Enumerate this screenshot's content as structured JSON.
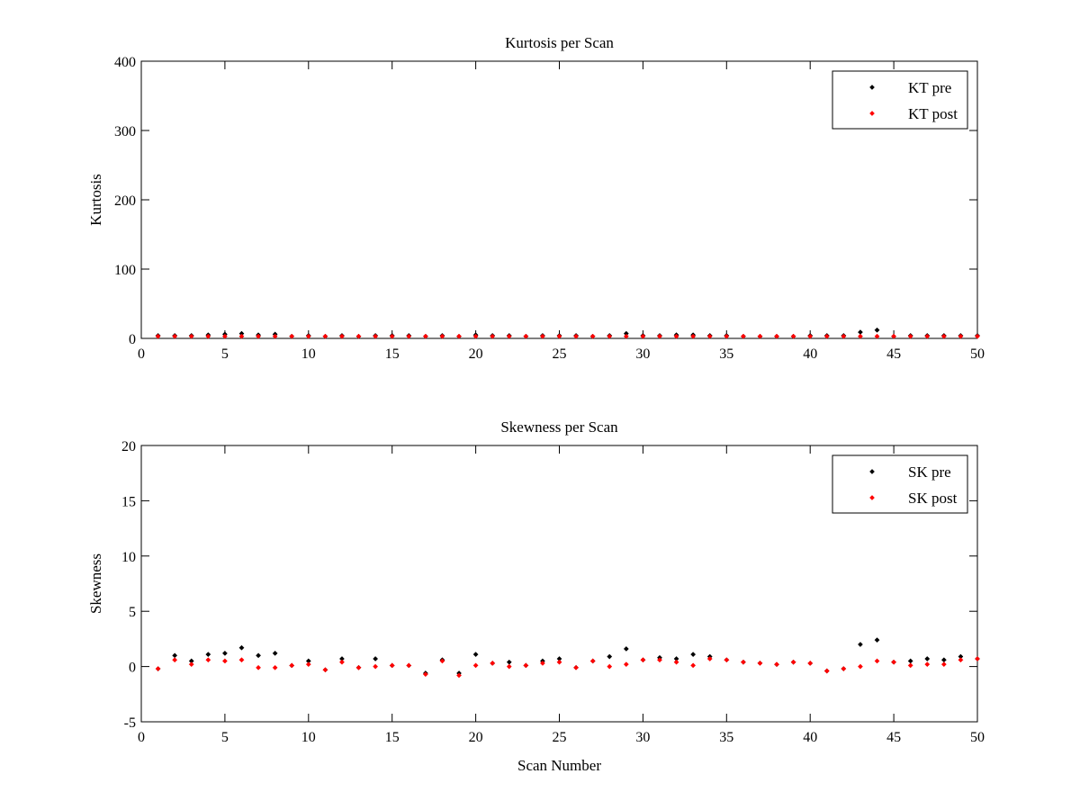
{
  "chart_data": [
    {
      "type": "scatter",
      "title": "Kurtosis per Scan",
      "xlabel": "",
      "ylabel": "Kurtosis",
      "xlim": [
        0,
        50
      ],
      "ylim": [
        0,
        400
      ],
      "xticks": [
        0,
        5,
        10,
        15,
        20,
        25,
        30,
        35,
        40,
        45,
        50
      ],
      "yticks": [
        0,
        100,
        200,
        300,
        400
      ],
      "grid": false,
      "legend_position": "top-right",
      "series": [
        {
          "name": "KT pre",
          "color": "#000000",
          "x": [
            1,
            2,
            3,
            4,
            5,
            6,
            7,
            8,
            9,
            10,
            11,
            12,
            13,
            14,
            15,
            16,
            17,
            18,
            19,
            20,
            21,
            22,
            23,
            24,
            25,
            26,
            27,
            28,
            29,
            30,
            31,
            32,
            33,
            34,
            35,
            36,
            37,
            38,
            39,
            40,
            41,
            42,
            43,
            44,
            45,
            46,
            47,
            48,
            49,
            50
          ],
          "y": [
            4,
            4,
            4,
            5,
            6,
            7,
            5,
            6,
            3,
            4,
            3,
            4,
            3,
            4,
            4,
            4,
            3,
            4,
            3,
            5,
            4,
            4,
            3,
            4,
            4,
            4,
            3,
            4,
            7,
            4,
            4,
            5,
            5,
            4,
            4,
            3,
            3,
            3,
            3,
            4,
            4,
            4,
            9,
            12,
            3,
            4,
            4,
            4,
            4,
            4
          ]
        },
        {
          "name": "KT post",
          "color": "#ff0000",
          "x": [
            1,
            2,
            3,
            4,
            5,
            6,
            7,
            8,
            9,
            10,
            11,
            12,
            13,
            14,
            15,
            16,
            17,
            18,
            19,
            20,
            21,
            22,
            23,
            24,
            25,
            26,
            27,
            28,
            29,
            30,
            31,
            32,
            33,
            34,
            35,
            36,
            37,
            38,
            39,
            40,
            41,
            42,
            43,
            44,
            45,
            46,
            47,
            48,
            49,
            50
          ],
          "y": [
            3,
            3,
            3,
            3,
            3,
            3,
            3,
            3,
            3,
            3,
            3,
            3,
            3,
            3,
            3,
            3,
            3,
            3,
            3,
            3,
            3,
            3,
            3,
            3,
            3,
            3,
            3,
            3,
            3,
            3,
            3,
            3,
            3,
            3,
            3,
            3,
            3,
            3,
            3,
            3,
            3,
            3,
            3,
            3,
            3,
            3,
            3,
            3,
            3,
            3
          ]
        }
      ]
    },
    {
      "type": "scatter",
      "title": "Skewness per Scan",
      "xlabel": "Scan Number",
      "ylabel": "Skewness",
      "xlim": [
        0,
        50
      ],
      "ylim": [
        -5,
        20
      ],
      "xticks": [
        0,
        5,
        10,
        15,
        20,
        25,
        30,
        35,
        40,
        45,
        50
      ],
      "yticks": [
        -5,
        0,
        5,
        10,
        15,
        20
      ],
      "grid": false,
      "legend_position": "top-right",
      "series": [
        {
          "name": "SK pre",
          "color": "#000000",
          "x": [
            1,
            2,
            3,
            4,
            5,
            6,
            7,
            8,
            9,
            10,
            11,
            12,
            13,
            14,
            15,
            16,
            17,
            18,
            19,
            20,
            21,
            22,
            23,
            24,
            25,
            26,
            27,
            28,
            29,
            30,
            31,
            32,
            33,
            34,
            35,
            36,
            37,
            38,
            39,
            40,
            41,
            42,
            43,
            44,
            45,
            46,
            47,
            48,
            49,
            50
          ],
          "y": [
            -0.2,
            1.0,
            0.5,
            1.1,
            1.2,
            1.7,
            1.0,
            1.2,
            0.1,
            0.5,
            -0.3,
            0.7,
            -0.1,
            0.7,
            0.1,
            0.1,
            -0.6,
            0.6,
            -0.6,
            1.1,
            0.3,
            0.4,
            0.1,
            0.5,
            0.7,
            -0.1,
            0.5,
            0.9,
            1.6,
            0.6,
            0.8,
            0.7,
            1.1,
            0.9,
            0.6,
            0.4,
            0.3,
            0.2,
            0.4,
            0.3,
            -0.4,
            -0.2,
            2.0,
            2.4,
            0.4,
            0.5,
            0.7,
            0.6,
            0.9,
            0.7
          ]
        },
        {
          "name": "SK post",
          "color": "#ff0000",
          "x": [
            1,
            2,
            3,
            4,
            5,
            6,
            7,
            8,
            9,
            10,
            11,
            12,
            13,
            14,
            15,
            16,
            17,
            18,
            19,
            20,
            21,
            22,
            23,
            24,
            25,
            26,
            27,
            28,
            29,
            30,
            31,
            32,
            33,
            34,
            35,
            36,
            37,
            38,
            39,
            40,
            41,
            42,
            43,
            44,
            45,
            46,
            47,
            48,
            49,
            50
          ],
          "y": [
            -0.2,
            0.6,
            0.2,
            0.6,
            0.5,
            0.6,
            -0.1,
            -0.1,
            0.1,
            0.2,
            -0.3,
            0.4,
            -0.1,
            0.0,
            0.1,
            0.1,
            -0.7,
            0.5,
            -0.8,
            0.1,
            0.3,
            0.0,
            0.1,
            0.3,
            0.4,
            -0.1,
            0.5,
            0.0,
            0.2,
            0.6,
            0.6,
            0.4,
            0.1,
            0.7,
            0.6,
            0.4,
            0.3,
            0.2,
            0.4,
            0.3,
            -0.4,
            -0.2,
            0.0,
            0.5,
            0.4,
            0.1,
            0.2,
            0.2,
            0.6,
            0.7
          ]
        }
      ]
    }
  ]
}
